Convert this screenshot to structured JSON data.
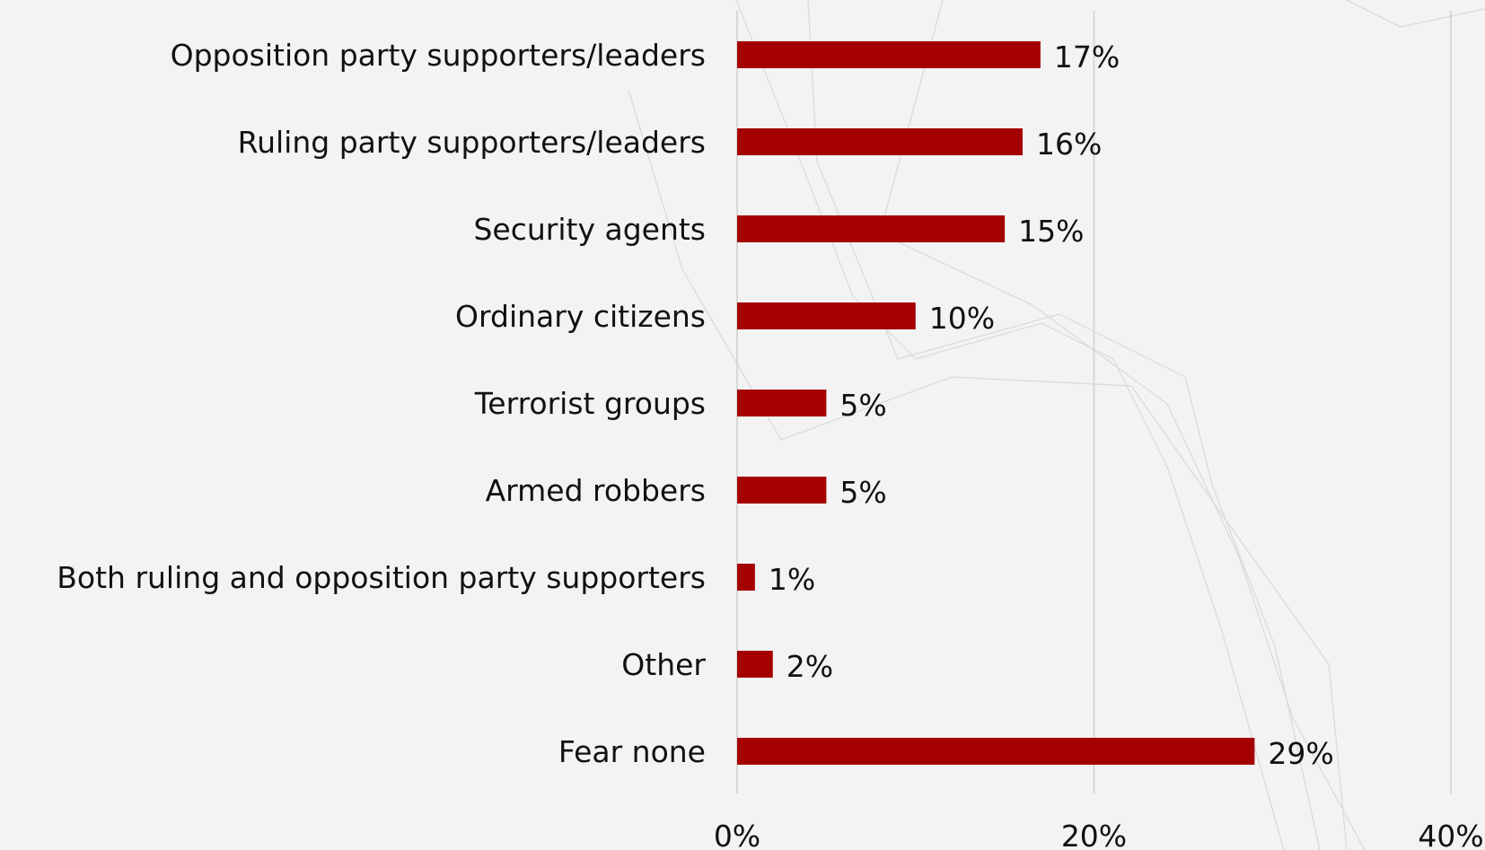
{
  "chart_data": {
    "type": "bar",
    "orientation": "horizontal",
    "categories": [
      "Opposition party supporters/leaders",
      "Ruling party supporters/leaders",
      "Security agents",
      "Ordinary citizens",
      "Terrorist groups",
      "Armed robbers",
      "Both ruling and opposition party supporters",
      "Other",
      "Fear none"
    ],
    "values": [
      17,
      16,
      15,
      10,
      5,
      5,
      1,
      2,
      29
    ],
    "value_labels": [
      "17%",
      "16%",
      "15%",
      "10%",
      "5%",
      "5%",
      "1%",
      "2%",
      "29%"
    ],
    "xlim": [
      0,
      40
    ],
    "x_ticks": [
      0,
      20,
      40
    ],
    "x_tick_labels": [
      "0%",
      "20%",
      "40%"
    ],
    "grid": "vertical",
    "legend": "none",
    "bar_color": "#a50000"
  }
}
